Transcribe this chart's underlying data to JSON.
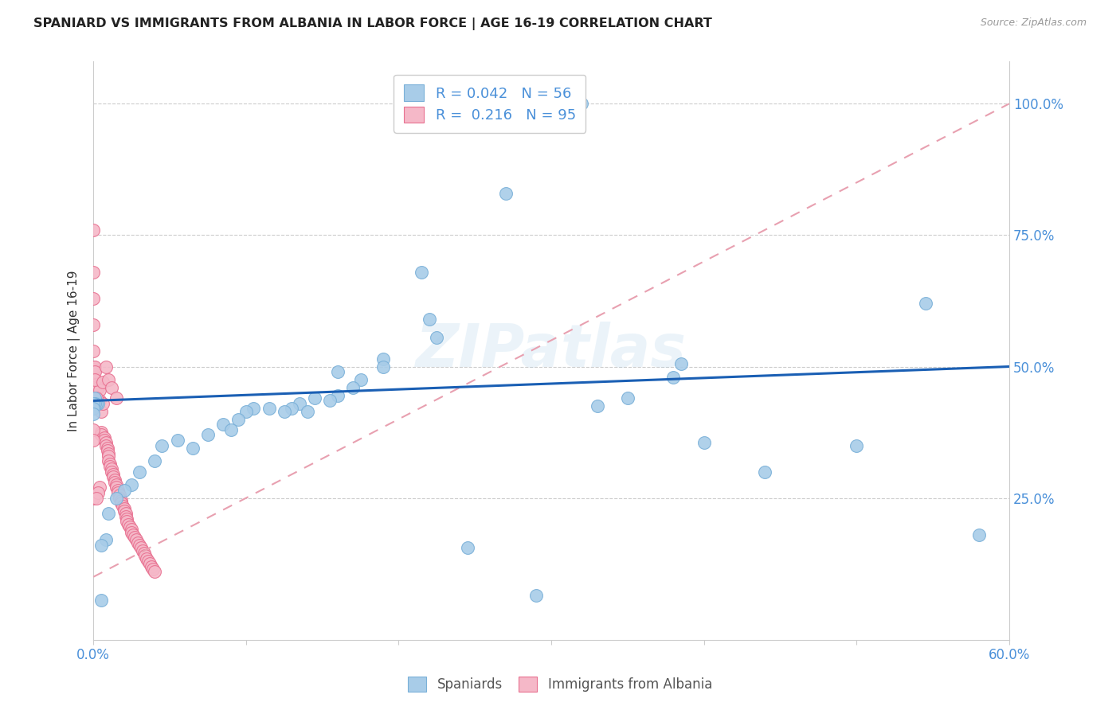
{
  "title": "SPANIARD VS IMMIGRANTS FROM ALBANIA IN LABOR FORCE | AGE 16-19 CORRELATION CHART",
  "source": "Source: ZipAtlas.com",
  "ylabel": "In Labor Force | Age 16-19",
  "xlim": [
    0.0,
    0.6
  ],
  "ylim": [
    -0.02,
    1.08
  ],
  "ytick_vals": [
    0.25,
    0.5,
    0.75,
    1.0
  ],
  "ytick_labels": [
    "25.0%",
    "50.0%",
    "75.0%",
    "100.0%"
  ],
  "blue_color": "#a8cce8",
  "pink_color": "#f5b8c8",
  "blue_edge": "#7ab0d8",
  "pink_edge": "#e87090",
  "trend_blue": "#1a5fb4",
  "trend_pink": "#e8a0b0",
  "R_blue": 0.042,
  "N_blue": 56,
  "R_pink": 0.216,
  "N_pink": 95,
  "legend_label_blue": "Spaniards",
  "legend_label_pink": "Immigrants from Albania",
  "watermark": "ZIPatlas",
  "blue_trend_x": [
    0.0,
    0.6
  ],
  "blue_trend_y": [
    0.435,
    0.5
  ],
  "pink_trend_x": [
    0.0,
    0.6
  ],
  "pink_trend_y": [
    0.1,
    1.0
  ],
  "blue_x": [
    0.285,
    0.315,
    0.32,
    0.27,
    0.215,
    0.22,
    0.225,
    0.19,
    0.175,
    0.16,
    0.155,
    0.145,
    0.135,
    0.13,
    0.125,
    0.115,
    0.105,
    0.1,
    0.095,
    0.085,
    0.075,
    0.055,
    0.045,
    0.04,
    0.03,
    0.025,
    0.02,
    0.015,
    0.01,
    0.008,
    0.005,
    0.005,
    0.003,
    0.002,
    0.001,
    0.001,
    0.0,
    0.0,
    0.0,
    0.33,
    0.385,
    0.4,
    0.44,
    0.5,
    0.545,
    0.58,
    0.29,
    0.245,
    0.38,
    0.17,
    0.19,
    0.16,
    0.14,
    0.09,
    0.065,
    0.35
  ],
  "blue_y": [
    1.0,
    1.0,
    1.0,
    0.83,
    0.68,
    0.59,
    0.555,
    0.515,
    0.475,
    0.445,
    0.435,
    0.44,
    0.43,
    0.42,
    0.415,
    0.42,
    0.42,
    0.415,
    0.4,
    0.39,
    0.37,
    0.36,
    0.35,
    0.32,
    0.3,
    0.275,
    0.265,
    0.25,
    0.22,
    0.17,
    0.16,
    0.055,
    0.43,
    0.43,
    0.44,
    0.43,
    0.43,
    0.42,
    0.41,
    0.425,
    0.505,
    0.355,
    0.3,
    0.35,
    0.62,
    0.18,
    0.065,
    0.155,
    0.48,
    0.46,
    0.5,
    0.49,
    0.415,
    0.38,
    0.345,
    0.44
  ],
  "pink_x": [
    0.0,
    0.0,
    0.0,
    0.0,
    0.0,
    0.0,
    0.0,
    0.0,
    0.0,
    0.0,
    0.0,
    0.0,
    0.0,
    0.0,
    0.0,
    0.0,
    0.0,
    0.0,
    0.0,
    0.0,
    0.005,
    0.005,
    0.005,
    0.007,
    0.007,
    0.008,
    0.008,
    0.009,
    0.009,
    0.01,
    0.01,
    0.01,
    0.011,
    0.011,
    0.012,
    0.012,
    0.013,
    0.013,
    0.014,
    0.014,
    0.015,
    0.015,
    0.016,
    0.016,
    0.017,
    0.017,
    0.018,
    0.018,
    0.019,
    0.02,
    0.02,
    0.021,
    0.021,
    0.022,
    0.022,
    0.023,
    0.024,
    0.025,
    0.025,
    0.026,
    0.027,
    0.028,
    0.029,
    0.03,
    0.031,
    0.032,
    0.033,
    0.034,
    0.035,
    0.036,
    0.037,
    0.038,
    0.039,
    0.04,
    0.002,
    0.003,
    0.004,
    0.006,
    0.001,
    0.001,
    0.0,
    0.0,
    0.0,
    0.003,
    0.004,
    0.002,
    0.001,
    0.006,
    0.008,
    0.01,
    0.012,
    0.015,
    0.004,
    0.003,
    0.002
  ],
  "pink_y": [
    0.76,
    0.68,
    0.63,
    0.58,
    0.53,
    0.5,
    0.495,
    0.49,
    0.485,
    0.48,
    0.475,
    0.465,
    0.46,
    0.455,
    0.45,
    0.445,
    0.44,
    0.435,
    0.43,
    0.42,
    0.415,
    0.375,
    0.37,
    0.365,
    0.36,
    0.355,
    0.35,
    0.345,
    0.34,
    0.335,
    0.33,
    0.32,
    0.315,
    0.31,
    0.305,
    0.3,
    0.295,
    0.29,
    0.285,
    0.28,
    0.275,
    0.27,
    0.265,
    0.26,
    0.255,
    0.25,
    0.245,
    0.24,
    0.235,
    0.23,
    0.225,
    0.22,
    0.215,
    0.21,
    0.205,
    0.2,
    0.195,
    0.19,
    0.185,
    0.18,
    0.175,
    0.17,
    0.165,
    0.16,
    0.155,
    0.15,
    0.145,
    0.14,
    0.135,
    0.13,
    0.125,
    0.12,
    0.115,
    0.11,
    0.44,
    0.43,
    0.435,
    0.43,
    0.5,
    0.49,
    0.38,
    0.36,
    0.25,
    0.46,
    0.455,
    0.44,
    0.475,
    0.47,
    0.5,
    0.475,
    0.46,
    0.44,
    0.27,
    0.26,
    0.25
  ]
}
